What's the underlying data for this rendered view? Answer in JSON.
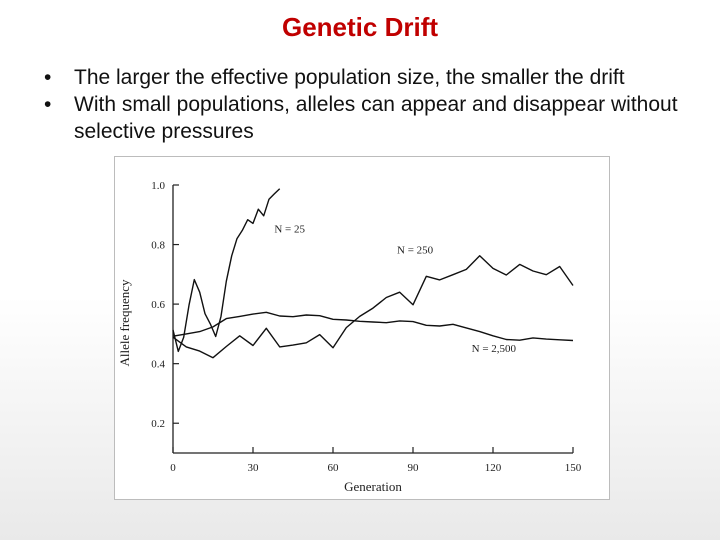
{
  "slide": {
    "title": "Genetic Drift",
    "bullets": [
      "The larger the effective population size, the smaller the drift",
      "With small populations, alleles can appear and disappear without selective pressures"
    ]
  },
  "chart_data": {
    "type": "line",
    "xlabel": "Generation",
    "ylabel": "Allele frequency",
    "xlim": [
      0,
      150
    ],
    "ylim": [
      0.1,
      1.0
    ],
    "xticks": [
      0,
      30,
      60,
      90,
      120,
      150
    ],
    "yticks": [
      0.2,
      0.4,
      0.6,
      0.8,
      1.0
    ],
    "xtick_labels": [
      "0",
      "30",
      "60",
      "90",
      "120",
      "150"
    ],
    "ytick_labels": [
      "0.2",
      "0.4",
      "0.6",
      "0.8",
      "1.0"
    ],
    "grid": false,
    "color": "#111111",
    "series": [
      {
        "name": "N = 25",
        "x": [
          0,
          2,
          4,
          6,
          8,
          10,
          12,
          14,
          16,
          18,
          20,
          22,
          24,
          26,
          28,
          30,
          32,
          34,
          36,
          38,
          40
        ],
        "y": [
          0.51,
          0.44,
          0.49,
          0.6,
          0.68,
          0.64,
          0.57,
          0.53,
          0.49,
          0.56,
          0.68,
          0.76,
          0.82,
          0.85,
          0.88,
          0.87,
          0.92,
          0.9,
          0.95,
          0.97,
          0.99
        ]
      },
      {
        "name": "N = 250",
        "x": [
          0,
          5,
          10,
          15,
          20,
          25,
          30,
          35,
          40,
          45,
          50,
          55,
          60,
          65,
          70,
          75,
          80,
          85,
          90,
          95,
          100,
          105,
          110,
          115,
          120,
          125,
          130,
          135,
          140,
          145,
          150
        ],
        "y": [
          0.49,
          0.46,
          0.44,
          0.42,
          0.46,
          0.49,
          0.46,
          0.52,
          0.46,
          0.46,
          0.47,
          0.5,
          0.45,
          0.52,
          0.56,
          0.59,
          0.62,
          0.64,
          0.6,
          0.69,
          0.68,
          0.7,
          0.72,
          0.76,
          0.72,
          0.7,
          0.73,
          0.71,
          0.7,
          0.73,
          0.66
        ]
      },
      {
        "name": "N = 2,500",
        "x": [
          0,
          5,
          10,
          15,
          20,
          25,
          30,
          35,
          40,
          45,
          50,
          55,
          60,
          65,
          70,
          75,
          80,
          85,
          90,
          95,
          100,
          105,
          110,
          115,
          120,
          125,
          130,
          135,
          140,
          145,
          150
        ],
        "y": [
          0.49,
          0.5,
          0.51,
          0.52,
          0.55,
          0.56,
          0.57,
          0.57,
          0.56,
          0.56,
          0.56,
          0.56,
          0.55,
          0.55,
          0.54,
          0.54,
          0.54,
          0.54,
          0.54,
          0.53,
          0.53,
          0.53,
          0.52,
          0.51,
          0.49,
          0.48,
          0.48,
          0.49,
          0.48,
          0.48,
          0.48
        ]
      }
    ],
    "annotations": [
      {
        "text": "N = 25",
        "x": 38,
        "y": 0.84
      },
      {
        "text": "N = 250",
        "x": 84,
        "y": 0.77
      },
      {
        "text": "N = 2,500",
        "x": 112,
        "y": 0.44
      }
    ]
  }
}
